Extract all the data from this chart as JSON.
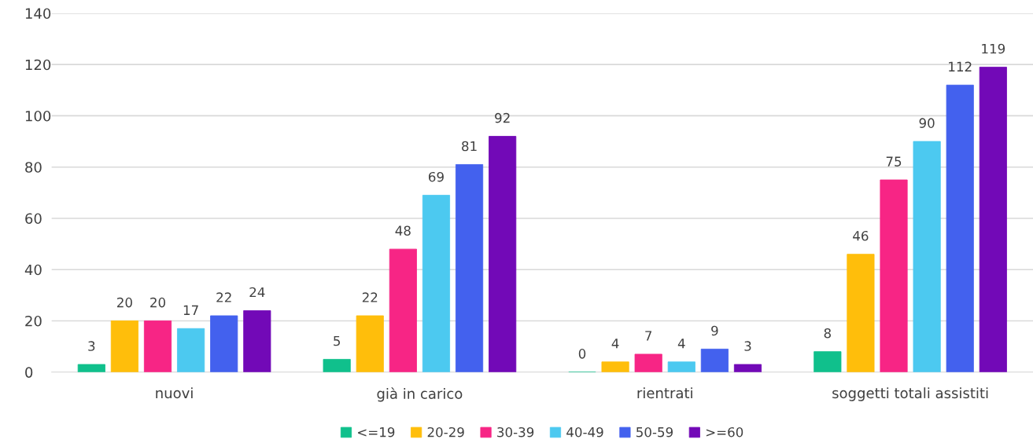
{
  "chart_data": {
    "type": "bar",
    "categories": [
      "nuovi",
      "già in carico",
      "rientrati",
      "soggetti totali assistiti"
    ],
    "series": [
      {
        "name": "<=19",
        "color": "#10c08c",
        "values": [
          3,
          5,
          0,
          8
        ]
      },
      {
        "name": "20-29",
        "color": "#ffbe0b",
        "values": [
          20,
          22,
          4,
          46
        ]
      },
      {
        "name": "30-39",
        "color": "#f72585",
        "values": [
          20,
          48,
          7,
          75
        ]
      },
      {
        "name": "40-49",
        "color": "#4cc9f0",
        "values": [
          17,
          69,
          4,
          90
        ]
      },
      {
        "name": "50-59",
        "color": "#4361ee",
        "values": [
          22,
          81,
          9,
          112
        ]
      },
      {
        "name": ">=60",
        "color": "#7209b7",
        "values": [
          24,
          92,
          3,
          119
        ]
      }
    ],
    "ylim": [
      0,
      140
    ],
    "yticks": [
      0,
      20,
      40,
      60,
      80,
      100,
      120,
      140
    ],
    "grid": "y",
    "legend": "bottom",
    "data_labels": true
  }
}
